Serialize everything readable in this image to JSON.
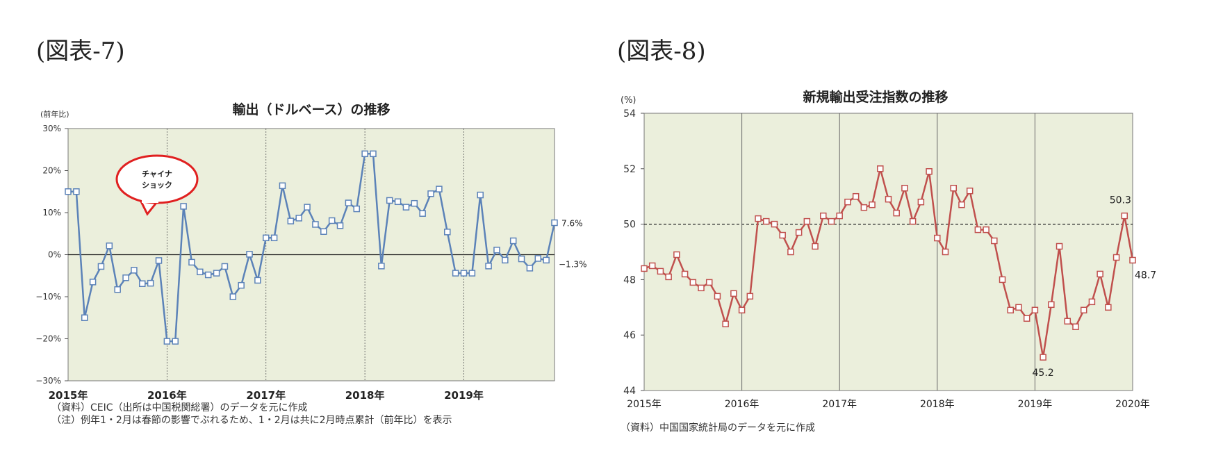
{
  "figure7": {
    "label": "(図表-7)",
    "notes": [
      "（資料）CEIC（出所は中国税関総署）のデータを元に作成",
      "（注）例年1・2月は春節の影響でぶれるため、1・2月は共に2月時点累計（前年比）を表示"
    ]
  },
  "figure8": {
    "label": "(図表-8)",
    "notes": [
      "（資料）中国国家統計局のデータを元に作成"
    ]
  },
  "colors": {
    "plot_bg": "#ebefdc",
    "line7": "#5b82b8",
    "line8": "#c0504d",
    "marker_fill": "#ffffff",
    "callout_border": "#e02020"
  },
  "chart_data": [
    {
      "type": "line",
      "title": "輸出（ドルベース）の推移",
      "ylabel": "(前年比)",
      "xlabel": "",
      "ylim": [
        -30,
        30
      ],
      "yticks": [
        -30,
        -20,
        -10,
        0,
        10,
        20,
        30
      ],
      "ytick_labels": [
        "−30%",
        "−20%",
        "−10%",
        "0%",
        "10%",
        "20%",
        "30%"
      ],
      "year_labels": [
        "2015年",
        "2016年",
        "2017年",
        "2018年",
        "2019年"
      ],
      "grid": "vertical lines at each January",
      "callout": "チャイナ\nショック",
      "end_labels": [
        "7.6%",
        "−1.3%"
      ],
      "series": [
        {
          "x": [
            "2015-01",
            "2015-02",
            "2015-03",
            "2015-04",
            "2015-05",
            "2015-06",
            "2015-07",
            "2015-08",
            "2015-09",
            "2015-10",
            "2015-11",
            "2015-12",
            "2016-01",
            "2016-02",
            "2016-03",
            "2016-04",
            "2016-05",
            "2016-06",
            "2016-07",
            "2016-08",
            "2016-09",
            "2016-10",
            "2016-11",
            "2016-12",
            "2017-01",
            "2017-02",
            "2017-03",
            "2017-04",
            "2017-05",
            "2017-06",
            "2017-07",
            "2017-08",
            "2017-09",
            "2017-10",
            "2017-11",
            "2017-12",
            "2018-01",
            "2018-02",
            "2018-03",
            "2018-04",
            "2018-05",
            "2018-06",
            "2018-07",
            "2018-08",
            "2018-09",
            "2018-10",
            "2018-11",
            "2018-12",
            "2019-01",
            "2019-02",
            "2019-03",
            "2019-04",
            "2019-05",
            "2019-06",
            "2019-07",
            "2019-08",
            "2019-09",
            "2019-10",
            "2019-11",
            "2019-12"
          ],
          "values": [
            15.0,
            15.0,
            -15.0,
            -6.5,
            -2.8,
            2.1,
            -8.3,
            -5.5,
            -3.7,
            -6.9,
            -6.8,
            -1.4,
            -20.6,
            -20.6,
            11.5,
            -1.8,
            -4.1,
            -4.8,
            -4.4,
            -2.8,
            -10.0,
            -7.3,
            0.1,
            -6.1,
            4.0,
            4.0,
            16.4,
            8.0,
            8.7,
            11.3,
            7.2,
            5.5,
            8.1,
            6.9,
            12.3,
            10.9,
            24.0,
            24.0,
            -2.7,
            12.9,
            12.6,
            11.3,
            12.2,
            9.8,
            14.5,
            15.6,
            5.4,
            -4.4,
            -4.4,
            -4.4,
            14.2,
            -2.7,
            1.1,
            -1.3,
            3.3,
            -1.0,
            -3.2,
            -0.9,
            -1.3,
            7.6
          ]
        }
      ]
    },
    {
      "type": "line",
      "title": "新規輸出受注指数の推移",
      "ylabel": "(%)",
      "xlabel": "",
      "ylim": [
        44,
        54
      ],
      "yticks": [
        44,
        46,
        48,
        50,
        52,
        54
      ],
      "ytick_labels": [
        "44",
        "46",
        "48",
        "50",
        "52",
        "54"
      ],
      "year_labels": [
        "2015年",
        "2016年",
        "2017年",
        "2018年",
        "2019年",
        "2020年"
      ],
      "grid": "vertical lines at each January",
      "reference_line": 50,
      "point_labels": [
        "50.3",
        "48.7",
        "45.2"
      ],
      "series": [
        {
          "x": [
            "2015-01",
            "2015-02",
            "2015-03",
            "2015-04",
            "2015-05",
            "2015-06",
            "2015-07",
            "2015-08",
            "2015-09",
            "2015-10",
            "2015-11",
            "2015-12",
            "2016-01",
            "2016-02",
            "2016-03",
            "2016-04",
            "2016-05",
            "2016-06",
            "2016-07",
            "2016-08",
            "2016-09",
            "2016-10",
            "2016-11",
            "2016-12",
            "2017-01",
            "2017-02",
            "2017-03",
            "2017-04",
            "2017-05",
            "2017-06",
            "2017-07",
            "2017-08",
            "2017-09",
            "2017-10",
            "2017-11",
            "2017-12",
            "2018-01",
            "2018-02",
            "2018-03",
            "2018-04",
            "2018-05",
            "2018-06",
            "2018-07",
            "2018-08",
            "2018-09",
            "2018-10",
            "2018-11",
            "2018-12",
            "2019-01",
            "2019-02",
            "2019-03",
            "2019-04",
            "2019-05",
            "2019-06",
            "2019-07",
            "2019-08",
            "2019-09",
            "2019-10",
            "2019-11",
            "2019-12",
            "2020-01"
          ],
          "values": [
            48.4,
            48.5,
            48.3,
            48.1,
            48.9,
            48.2,
            47.9,
            47.7,
            47.9,
            47.4,
            46.4,
            47.5,
            46.9,
            47.4,
            50.2,
            50.1,
            50.0,
            49.6,
            49.0,
            49.7,
            50.1,
            49.2,
            50.3,
            50.1,
            50.3,
            50.8,
            51.0,
            50.6,
            50.7,
            52.0,
            50.9,
            50.4,
            51.3,
            50.1,
            50.8,
            51.9,
            49.5,
            49.0,
            51.3,
            50.7,
            51.2,
            49.8,
            49.8,
            49.4,
            48.0,
            46.9,
            47.0,
            46.6,
            46.9,
            45.2,
            47.1,
            49.2,
            46.5,
            46.3,
            46.9,
            47.2,
            48.2,
            47.0,
            48.8,
            50.3,
            48.7
          ]
        }
      ]
    }
  ]
}
